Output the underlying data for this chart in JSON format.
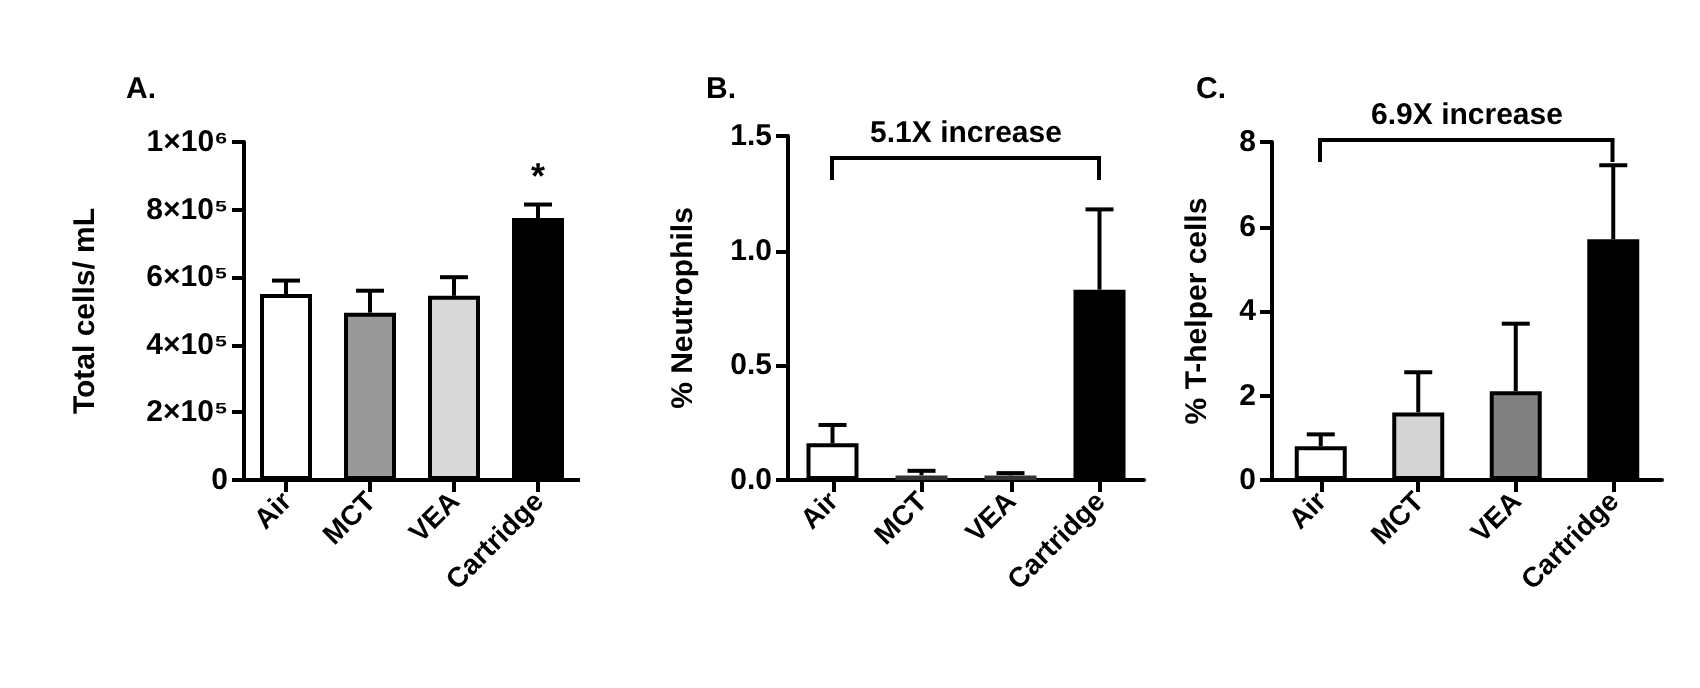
{
  "chart_data": [
    {
      "type": "bar",
      "title": "A.",
      "ylabel": "Total cells/ mL",
      "categories": [
        "Air",
        "MCT",
        "VEA",
        "Cartridge"
      ],
      "values": [
        550000,
        495000,
        545000,
        775000
      ],
      "colors": [
        "#ffffff",
        "#999999",
        "#d9d9d9",
        "#000000"
      ],
      "errors": [
        [
          550000,
          590000
        ],
        [
          495000,
          560000
        ],
        [
          545000,
          600000
        ],
        [
          775000,
          815000
        ]
      ],
      "ylim": [
        0,
        1000000
      ],
      "yticks": [
        0,
        {
          "value": 200000,
          "label": "2×10⁵"
        },
        {
          "value": 400000,
          "label": "4×10⁵"
        },
        {
          "value": 600000,
          "label": "6×10⁵"
        },
        {
          "value": 800000,
          "label": "8×10⁵"
        },
        {
          "value": 1000000,
          "label": "1×10⁶"
        }
      ],
      "annotations": [
        "*"
      ]
    },
    {
      "type": "bar",
      "title": "B.",
      "ylabel": "% Neutrophils",
      "categories": [
        "Air",
        "MCT",
        "VEA",
        "Cartridge"
      ],
      "values": [
        0.16,
        0.02,
        0.02,
        0.83
      ],
      "colors": [
        "#ffffff",
        "#333333",
        "#333333",
        "#000000"
      ],
      "errors": [
        [
          0.16,
          0.24
        ],
        [
          0.02,
          0.04
        ],
        [
          0.02,
          0.03
        ],
        [
          0.83,
          1.18
        ]
      ],
      "ylim": [
        0,
        1.5
      ],
      "yticks": [
        {
          "value": 0,
          "label": "0.0"
        },
        {
          "value": 0.5,
          "label": "0.5"
        },
        {
          "value": 1,
          "label": "1.0"
        },
        {
          "value": 1.5,
          "label": "1.5"
        }
      ],
      "annotations": [
        "5.1X increase"
      ]
    },
    {
      "type": "bar",
      "title": "C.",
      "ylabel": "% T-helper cells",
      "categories": [
        "Air",
        "MCT",
        "VEA",
        "Cartridge"
      ],
      "values": [
        0.8,
        1.6,
        2.1,
        5.7
      ],
      "colors": [
        "#ffffff",
        "#d4d4d4",
        "#808080",
        "#000000"
      ],
      "errors": [
        [
          0.8,
          1.08
        ],
        [
          1.6,
          2.55
        ],
        [
          2.1,
          3.7
        ],
        [
          5.7,
          7.45
        ]
      ],
      "ylim": [
        0,
        8
      ],
      "yticks": [
        0,
        2,
        4,
        6,
        8
      ],
      "annotations": [
        "6.9X increase"
      ]
    }
  ]
}
